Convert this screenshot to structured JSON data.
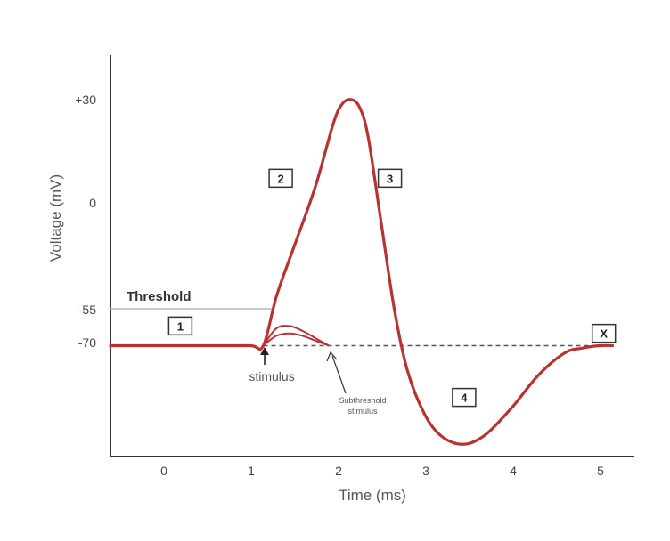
{
  "chart_data": {
    "type": "line",
    "title": "",
    "xlabel": "Time (ms)",
    "ylabel": "Voltage (mV)",
    "xlim": [
      -0.6,
      5.4
    ],
    "ylim": [
      -115,
      48
    ],
    "x_ticks": [
      "0",
      "1",
      "2",
      "3",
      "4",
      "5"
    ],
    "y_ticks": [
      "+30",
      "0",
      "-55",
      "-70"
    ],
    "threshold": {
      "label": "Threshold",
      "value": -55
    },
    "series": [
      {
        "x": [
          -0.6,
          0,
          0.5,
          1.0,
          1.15,
          1.3,
          1.5,
          1.75,
          1.95,
          2.05,
          2.15,
          2.25,
          2.35,
          2.5,
          2.65,
          2.8,
          3.0,
          3.2,
          3.45,
          3.7,
          4.0,
          4.3,
          4.6,
          4.8,
          5.0,
          5.15
        ],
        "y": [
          -70,
          -70,
          -70,
          -70,
          -70,
          -50,
          -30,
          -5,
          20,
          28,
          30,
          27,
          15,
          -20,
          -55,
          -80,
          -98,
          -107,
          -110,
          -106,
          -95,
          -82,
          -73,
          -71,
          -70,
          -70
        ]
      },
      {
        "x": [
          1.15,
          1.3,
          1.45,
          1.6,
          1.75,
          1.9
        ],
        "y": [
          -70,
          -63,
          -62,
          -64,
          -67,
          -70
        ]
      },
      {
        "x": [
          1.15,
          1.3,
          1.45,
          1.6,
          1.75,
          1.9
        ],
        "y": [
          -70,
          -66,
          -65,
          -66,
          -68,
          -70
        ]
      }
    ],
    "resting_dashed": {
      "x": [
        1.15,
        5.15
      ],
      "y": -70
    },
    "stage_boxes": [
      {
        "label": "1",
        "x": 0.2,
        "y": -62
      },
      {
        "label": "2",
        "x": 1.35,
        "y": -2
      },
      {
        "label": "3",
        "x": 2.6,
        "y": -2
      },
      {
        "label": "4",
        "x": 3.45,
        "y": -91
      },
      {
        "label": "X",
        "x": 5.05,
        "y": -65
      }
    ],
    "annotations": [
      {
        "text": "stimulus",
        "x": 1.15,
        "y": -86
      },
      {
        "text": "Subthreshold",
        "text2": "stimulus",
        "x": 2.3,
        "y": -93
      }
    ],
    "grid": false,
    "legend": "none"
  },
  "colors": {
    "trace": "#b83232",
    "axis": "#333333",
    "threshold_line": "#aaaaaa",
    "dashed": "#555555"
  }
}
